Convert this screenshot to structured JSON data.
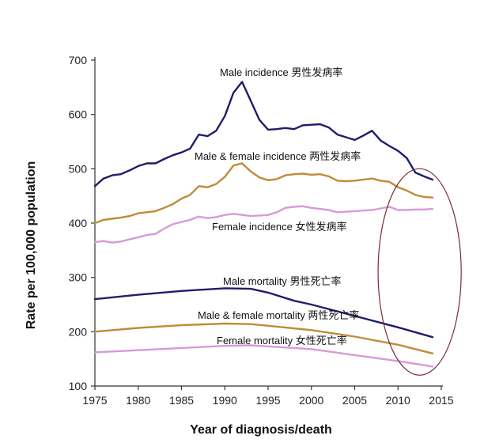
{
  "chart_data": {
    "type": "line",
    "xlabel": "Year of diagnosis/death",
    "ylabel": "Rate per 100,000 population",
    "xlim": [
      1975,
      2015
    ],
    "ylim": [
      100,
      700
    ],
    "xticks": [
      1975,
      1980,
      1985,
      1990,
      1995,
      2000,
      2005,
      2010,
      2015
    ],
    "yticks": [
      100,
      200,
      300,
      400,
      500,
      600,
      700
    ],
    "grid": false,
    "colors": {
      "male": "#1f1d6b",
      "both": "#c08b3a",
      "female": "#d79ad8",
      "ellipse": "#7a2a3a"
    },
    "annotation": {
      "type": "ellipse",
      "x_center": 2012.5,
      "y_center": 310,
      "x_radius": 4.8,
      "y_radius": 190
    },
    "series": [
      {
        "key": "male_incidence",
        "name": "Male incidence  男性发病率",
        "color": "#1f1d6b",
        "x": [
          1975,
          1976,
          1977,
          1978,
          1979,
          1980,
          1981,
          1982,
          1983,
          1984,
          1985,
          1986,
          1987,
          1988,
          1989,
          1990,
          1991,
          1992,
          1993,
          1994,
          1995,
          1996,
          1997,
          1998,
          1999,
          2000,
          2001,
          2002,
          2003,
          2004,
          2005,
          2006,
          2007,
          2008,
          2009,
          2010,
          2011,
          2012,
          2013,
          2014
        ],
        "values": [
          468,
          482,
          488,
          490,
          497,
          505,
          510,
          510,
          518,
          525,
          530,
          537,
          563,
          560,
          570,
          597,
          640,
          660,
          625,
          590,
          572,
          573,
          575,
          573,
          580,
          581,
          582,
          576,
          563,
          558,
          553,
          561,
          570,
          552,
          542,
          533,
          520,
          493,
          486,
          480
        ]
      },
      {
        "key": "both_incidence",
        "name": "Male & female incidence  两性发病率",
        "color": "#c08b3a",
        "x": [
          1975,
          1976,
          1977,
          1978,
          1979,
          1980,
          1981,
          1982,
          1983,
          1984,
          1985,
          1986,
          1987,
          1988,
          1989,
          1990,
          1991,
          1992,
          1993,
          1994,
          1995,
          1996,
          1997,
          1998,
          1999,
          2000,
          2001,
          2002,
          2003,
          2004,
          2005,
          2006,
          2007,
          2008,
          2009,
          2010,
          2011,
          2012,
          2013,
          2014
        ],
        "values": [
          400,
          406,
          408,
          410,
          413,
          418,
          420,
          422,
          428,
          435,
          445,
          452,
          468,
          466,
          472,
          485,
          506,
          510,
          495,
          484,
          479,
          481,
          488,
          490,
          491,
          489,
          490,
          486,
          478,
          477,
          478,
          480,
          482,
          478,
          476,
          466,
          460,
          452,
          448,
          447
        ]
      },
      {
        "key": "female_incidence",
        "name": "Female incidence  女性发病率",
        "color": "#d79ad8",
        "x": [
          1975,
          1976,
          1977,
          1978,
          1979,
          1980,
          1981,
          1982,
          1983,
          1984,
          1985,
          1986,
          1987,
          1988,
          1989,
          1990,
          1991,
          1992,
          1993,
          1994,
          1995,
          1996,
          1997,
          1998,
          1999,
          2000,
          2001,
          2002,
          2003,
          2004,
          2005,
          2006,
          2007,
          2008,
          2009,
          2010,
          2011,
          2012,
          2013,
          2014
        ],
        "values": [
          365,
          367,
          364,
          366,
          370,
          374,
          378,
          380,
          390,
          398,
          402,
          406,
          412,
          409,
          411,
          415,
          417,
          415,
          413,
          414,
          415,
          420,
          428,
          430,
          431,
          428,
          426,
          424,
          420,
          421,
          422,
          423,
          424,
          427,
          430,
          424,
          424,
          425,
          425,
          426
        ]
      },
      {
        "key": "male_mortality",
        "name": "Male mortality  男性死亡率",
        "color": "#1f1d6b",
        "x": [
          1975,
          1980,
          1985,
          1990,
          1993,
          1995,
          1998,
          2000,
          2005,
          2010,
          2014
        ],
        "values": [
          260,
          268,
          275,
          280,
          279,
          272,
          257,
          250,
          229,
          208,
          190
        ]
      },
      {
        "key": "both_mortality",
        "name": "Male & female mortality  两性死亡率",
        "color": "#c08b3a",
        "x": [
          1975,
          1980,
          1985,
          1990,
          1993,
          1995,
          2000,
          2005,
          2010,
          2014
        ],
        "values": [
          200,
          207,
          212,
          215,
          214,
          211,
          203,
          191,
          176,
          160
        ]
      },
      {
        "key": "female_mortality",
        "name": "Female mortality  女性死亡率",
        "color": "#d79ad8",
        "x": [
          1975,
          1980,
          1985,
          1990,
          1993,
          1995,
          2000,
          2005,
          2010,
          2014
        ],
        "values": [
          162,
          166,
          170,
          174,
          175,
          173,
          168,
          157,
          146,
          136
        ]
      }
    ]
  }
}
